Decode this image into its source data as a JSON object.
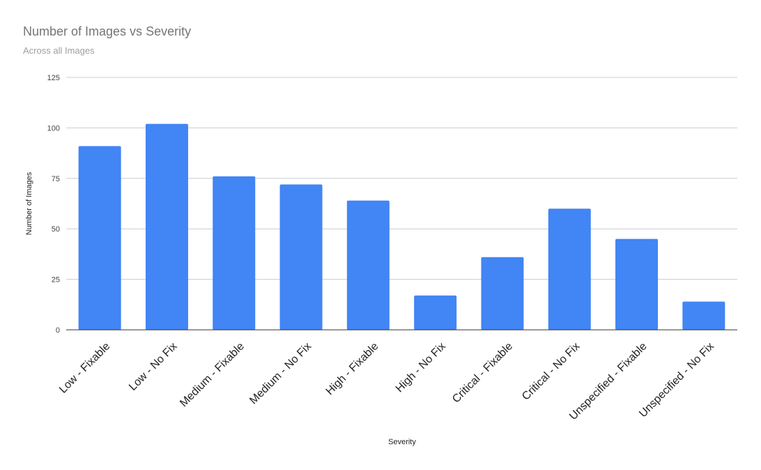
{
  "chart_data": {
    "type": "bar",
    "title": "Number of Images vs Severity",
    "subtitle": "Across all Images",
    "xlabel": "Severity",
    "ylabel": "Number of Images",
    "categories": [
      "Low - Fixable",
      "Low - No Fix",
      "Medium - Fixable",
      "Medium - No Fix",
      "High - Fixable",
      "High - No Fix",
      "Critical - Fixable",
      "Critical - No Fix",
      "Unspecified - Fixable",
      "Unspecified - No Fix"
    ],
    "values": [
      91,
      102,
      76,
      72,
      64,
      17,
      36,
      60,
      45,
      14
    ],
    "ylim": [
      0,
      125
    ],
    "yticks": [
      "0",
      "25",
      "50",
      "75",
      "100",
      "125"
    ],
    "grid": true,
    "legend": "none",
    "bar_color": "#4285f4"
  }
}
